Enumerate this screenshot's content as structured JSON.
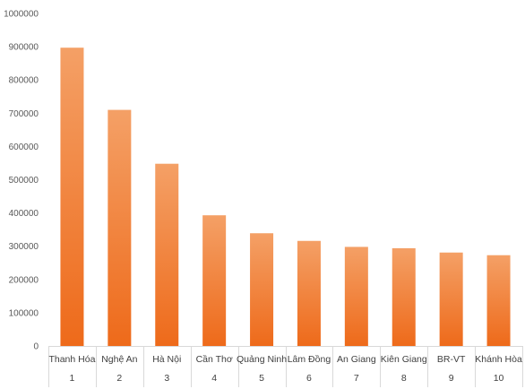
{
  "chart_data": {
    "type": "bar",
    "categories": [
      "Thanh Hóa",
      "Nghệ An",
      "Hà Nội",
      "Cần Thơ",
      "Quảng Ninh",
      "Lâm Đồng",
      "An Giang",
      "Kiên Giang",
      "BR-VT",
      "Khánh Hòa"
    ],
    "ranks": [
      "1",
      "2",
      "3",
      "4",
      "5",
      "6",
      "7",
      "8",
      "9",
      "10"
    ],
    "values": [
      897000,
      710000,
      548000,
      393000,
      339000,
      316000,
      298000,
      294000,
      281000,
      273000
    ],
    "ylim": [
      0,
      1000000
    ],
    "yticks": [
      "0",
      "100000",
      "200000",
      "300000",
      "400000",
      "500000",
      "600000",
      "700000",
      "800000",
      "900000",
      "1000000"
    ],
    "title": "",
    "xlabel": "",
    "ylabel": "",
    "grid": false,
    "legend": "none",
    "colors": {
      "bar_top": "#F4A066",
      "bar_bottom": "#EE6A1A",
      "axis": "#D9D9D9",
      "text": "#404040"
    }
  }
}
